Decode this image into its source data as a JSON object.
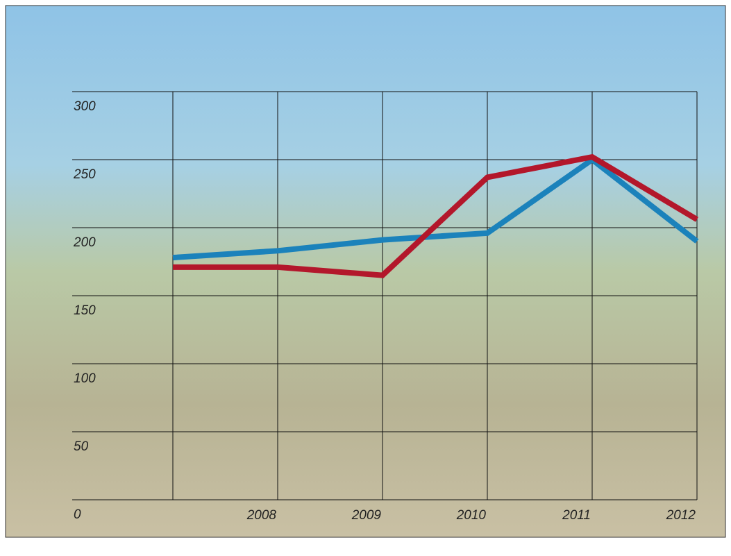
{
  "chart_data": {
    "type": "line",
    "categories": [
      null,
      "2008",
      "2009",
      "2010",
      "2011",
      "2012"
    ],
    "series": [
      {
        "color": "#1b82bb",
        "values": [
          178,
          183,
          191,
          196,
          250,
          190
        ]
      },
      {
        "color": "#b3172b",
        "values": [
          171,
          171,
          165,
          237,
          252,
          206
        ]
      }
    ],
    "ylim": [
      0,
      300
    ],
    "yticks": [
      0,
      50,
      100,
      150,
      200,
      250,
      300
    ],
    "grid": true
  }
}
